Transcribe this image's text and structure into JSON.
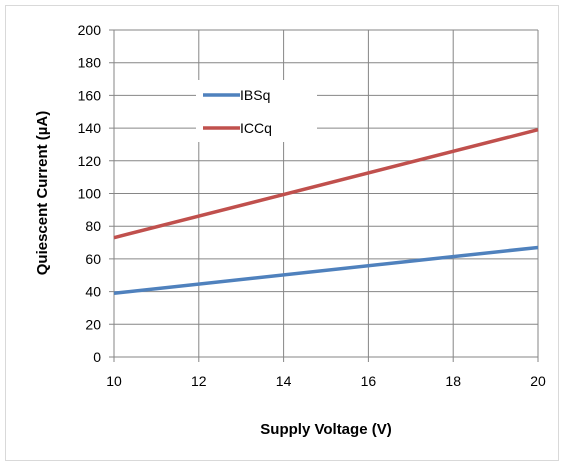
{
  "chart_data": {
    "type": "line",
    "xlabel": "Supply Voltage (V)",
    "ylabel": "Quiescent Current (µA)",
    "xlim": [
      10,
      20
    ],
    "ylim": [
      0,
      200
    ],
    "x_ticks": [
      10,
      12,
      14,
      16,
      18,
      20
    ],
    "y_ticks": [
      0,
      20,
      40,
      60,
      80,
      100,
      120,
      140,
      160,
      180,
      200
    ],
    "grid": true,
    "legend_position": "top-left inside plot",
    "series": [
      {
        "name": "IBSq",
        "color": "#4f81bd",
        "x": [
          10,
          20
        ],
        "y": [
          39,
          67
        ]
      },
      {
        "name": "ICCq",
        "color": "#c0504d",
        "x": [
          10,
          20
        ],
        "y": [
          73,
          139
        ]
      }
    ]
  }
}
